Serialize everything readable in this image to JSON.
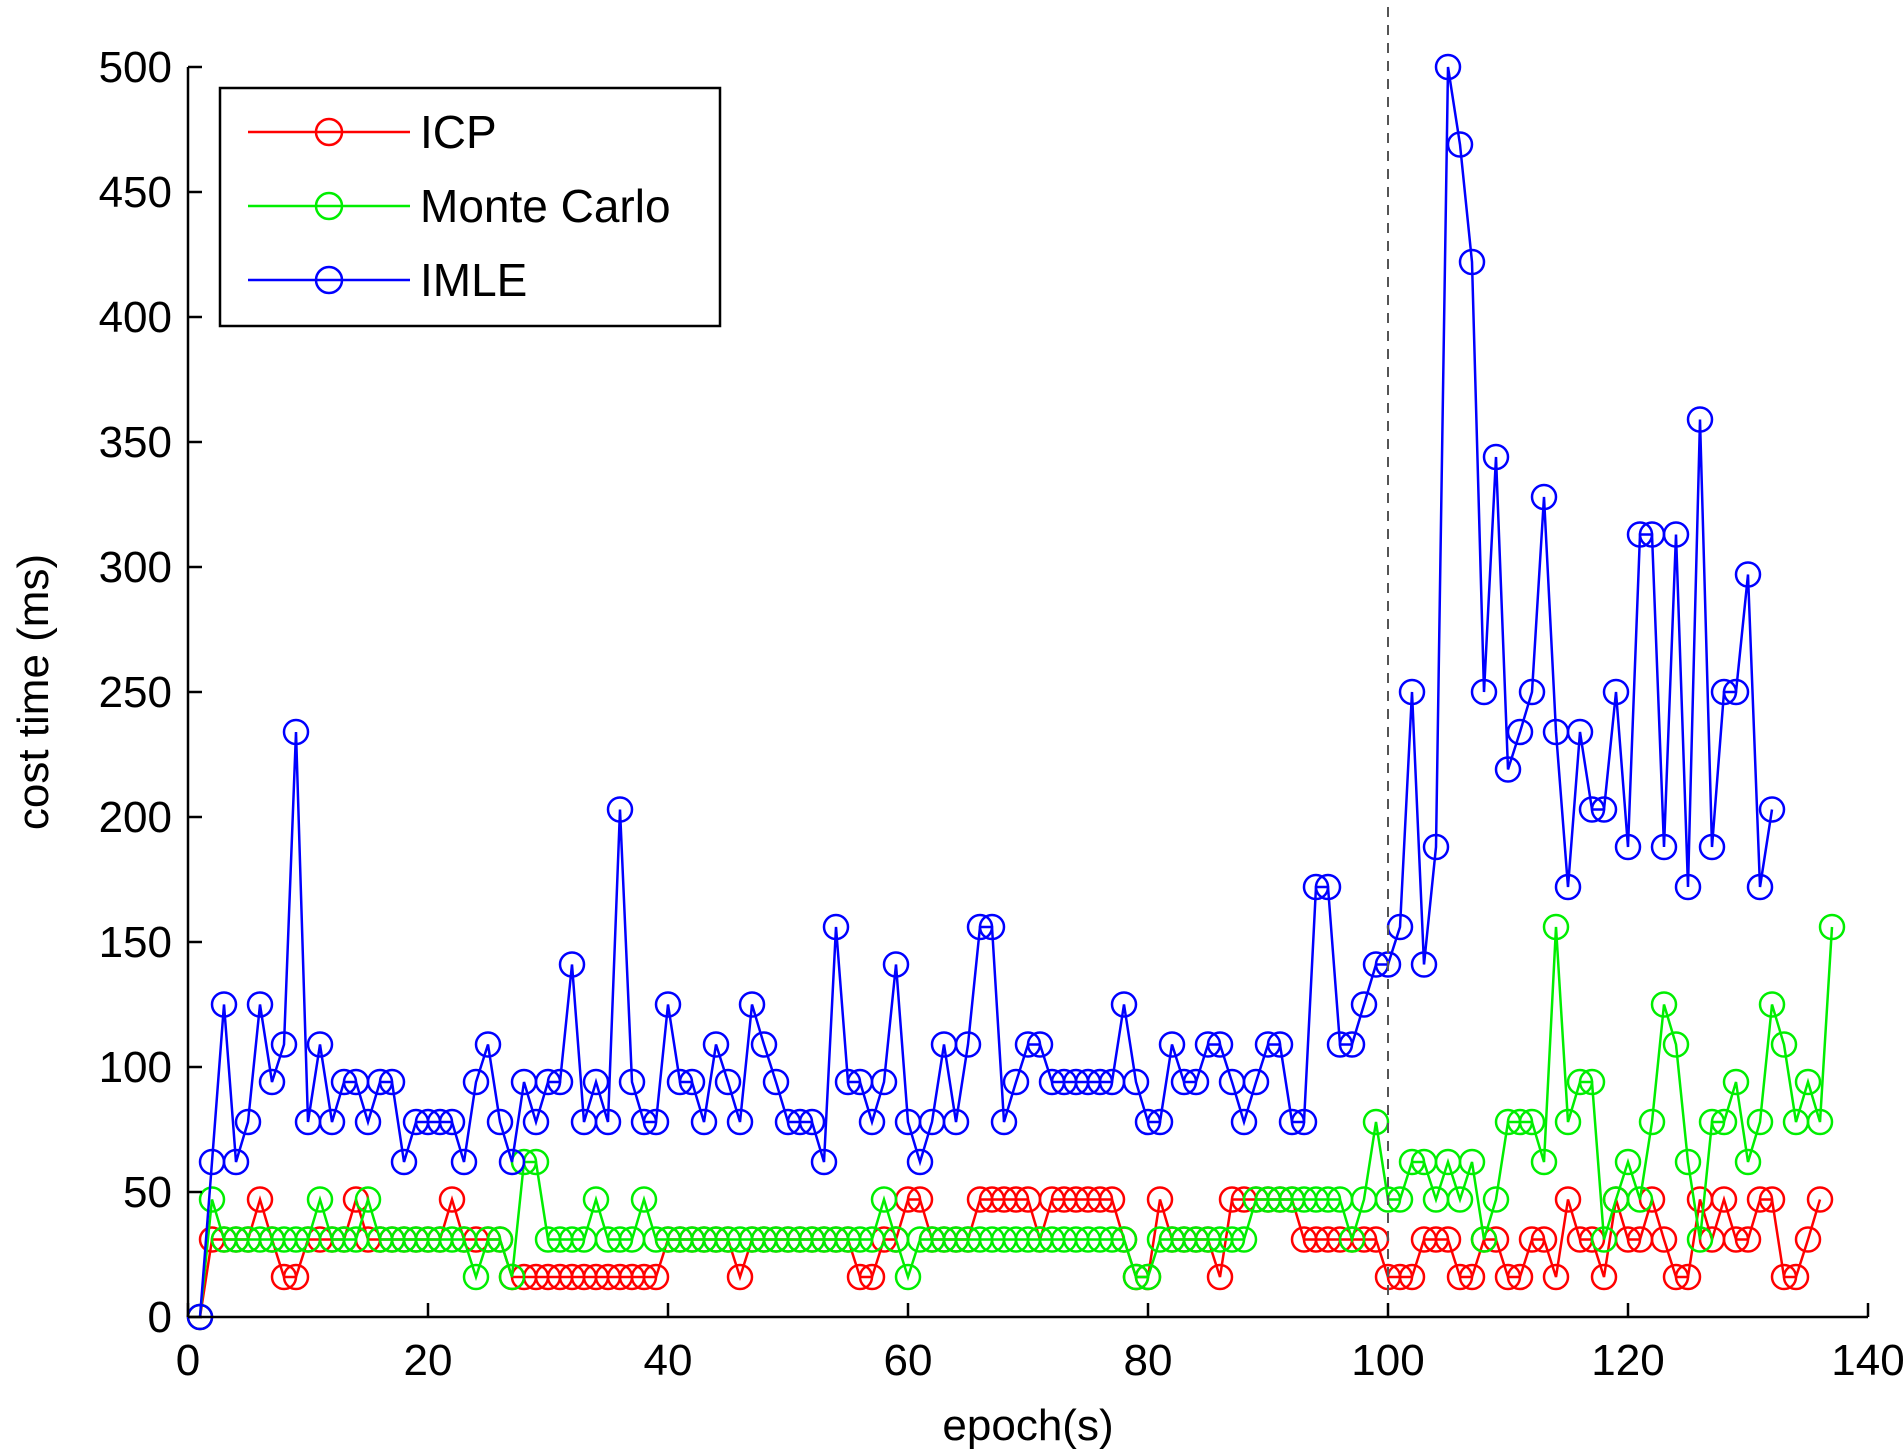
{
  "chart_data": {
    "type": "line",
    "title": "",
    "xlabel": "epoch(s)",
    "ylabel": "cost time (ms)",
    "xlim": [
      0,
      140
    ],
    "ylim": [
      0,
      500
    ],
    "xticks": [
      0,
      20,
      40,
      60,
      80,
      100,
      120,
      140
    ],
    "yticks": [
      0,
      50,
      100,
      150,
      200,
      250,
      300,
      350,
      400,
      450,
      500
    ],
    "grid": false,
    "legend_position": "top-left",
    "annotations": [
      {
        "type": "vertical-dashed-line",
        "x": 100
      }
    ],
    "series": [
      {
        "name": "ICP",
        "color": "#ff0000",
        "marker": "circle",
        "values": [
          0,
          31,
          31,
          31,
          31,
          47,
          31,
          16,
          16,
          31,
          31,
          31,
          31,
          47,
          31,
          31,
          31,
          31,
          31,
          31,
          31,
          47,
          31,
          31,
          31,
          31,
          16,
          16,
          16,
          16,
          16,
          16,
          16,
          16,
          16,
          16,
          16,
          16,
          16,
          31,
          31,
          31,
          31,
          31,
          31,
          16,
          31,
          31,
          31,
          31,
          31,
          31,
          31,
          31,
          31,
          16,
          16,
          31,
          31,
          47,
          47,
          31,
          31,
          31,
          31,
          47,
          47,
          47,
          47,
          47,
          31,
          47,
          47,
          47,
          47,
          47,
          47,
          31,
          16,
          16,
          47,
          31,
          31,
          31,
          31,
          16,
          47,
          47,
          47,
          47,
          47,
          47,
          31,
          31,
          31,
          31,
          31,
          31,
          31,
          16,
          16,
          16,
          31,
          31,
          31,
          16,
          16,
          31,
          31,
          16,
          16,
          31,
          31,
          16,
          47,
          31,
          31,
          16,
          47,
          31,
          31,
          47,
          31,
          16,
          16,
          47,
          31,
          47,
          31,
          31,
          47,
          47,
          16,
          16,
          31,
          47
        ]
      },
      {
        "name": "Monte Carlo",
        "color": "#00ee00",
        "marker": "circle",
        "values": [
          0,
          47,
          31,
          31,
          31,
          31,
          31,
          31,
          31,
          31,
          47,
          31,
          31,
          31,
          47,
          31,
          31,
          31,
          31,
          31,
          31,
          31,
          31,
          16,
          31,
          31,
          16,
          62,
          62,
          31,
          31,
          31,
          31,
          47,
          31,
          31,
          31,
          47,
          31,
          31,
          31,
          31,
          31,
          31,
          31,
          31,
          31,
          31,
          31,
          31,
          31,
          31,
          31,
          31,
          31,
          31,
          31,
          47,
          31,
          16,
          31,
          31,
          31,
          31,
          31,
          31,
          31,
          31,
          31,
          31,
          31,
          31,
          31,
          31,
          31,
          31,
          31,
          31,
          16,
          16,
          31,
          31,
          31,
          31,
          31,
          31,
          31,
          31,
          47,
          47,
          47,
          47,
          47,
          47,
          47,
          47,
          31,
          47,
          78,
          47,
          47,
          62,
          62,
          47,
          62,
          47,
          62,
          31,
          47,
          78,
          78,
          78,
          62,
          156,
          78,
          94,
          94,
          31,
          47,
          62,
          47,
          78,
          125,
          109,
          62,
          31,
          78,
          78,
          94,
          62,
          78,
          125,
          109,
          78,
          94,
          78,
          156
        ]
      },
      {
        "name": "IMLE",
        "color": "#0000ff",
        "marker": "circle",
        "values": [
          0,
          62,
          125,
          62,
          78,
          125,
          94,
          109,
          234,
          78,
          109,
          78,
          94,
          94,
          78,
          94,
          94,
          62,
          78,
          78,
          78,
          78,
          62,
          94,
          109,
          78,
          62,
          94,
          78,
          94,
          94,
          141,
          78,
          94,
          78,
          203,
          94,
          78,
          78,
          125,
          94,
          94,
          78,
          109,
          94,
          78,
          125,
          109,
          94,
          78,
          78,
          78,
          62,
          156,
          94,
          94,
          78,
          94,
          141,
          78,
          62,
          78,
          109,
          78,
          109,
          156,
          156,
          78,
          94,
          109,
          109,
          94,
          94,
          94,
          94,
          94,
          94,
          125,
          94,
          78,
          78,
          109,
          94,
          94,
          109,
          109,
          94,
          78,
          94,
          109,
          109,
          78,
          78,
          172,
          172,
          109,
          109,
          125,
          141,
          141,
          156,
          250,
          141,
          188,
          500,
          469,
          422,
          250,
          344,
          219,
          234,
          250,
          328,
          234,
          172,
          234,
          203,
          203,
          250,
          188,
          313,
          313,
          188,
          313,
          172,
          359,
          188,
          250,
          250,
          297,
          172,
          203
        ]
      }
    ]
  }
}
